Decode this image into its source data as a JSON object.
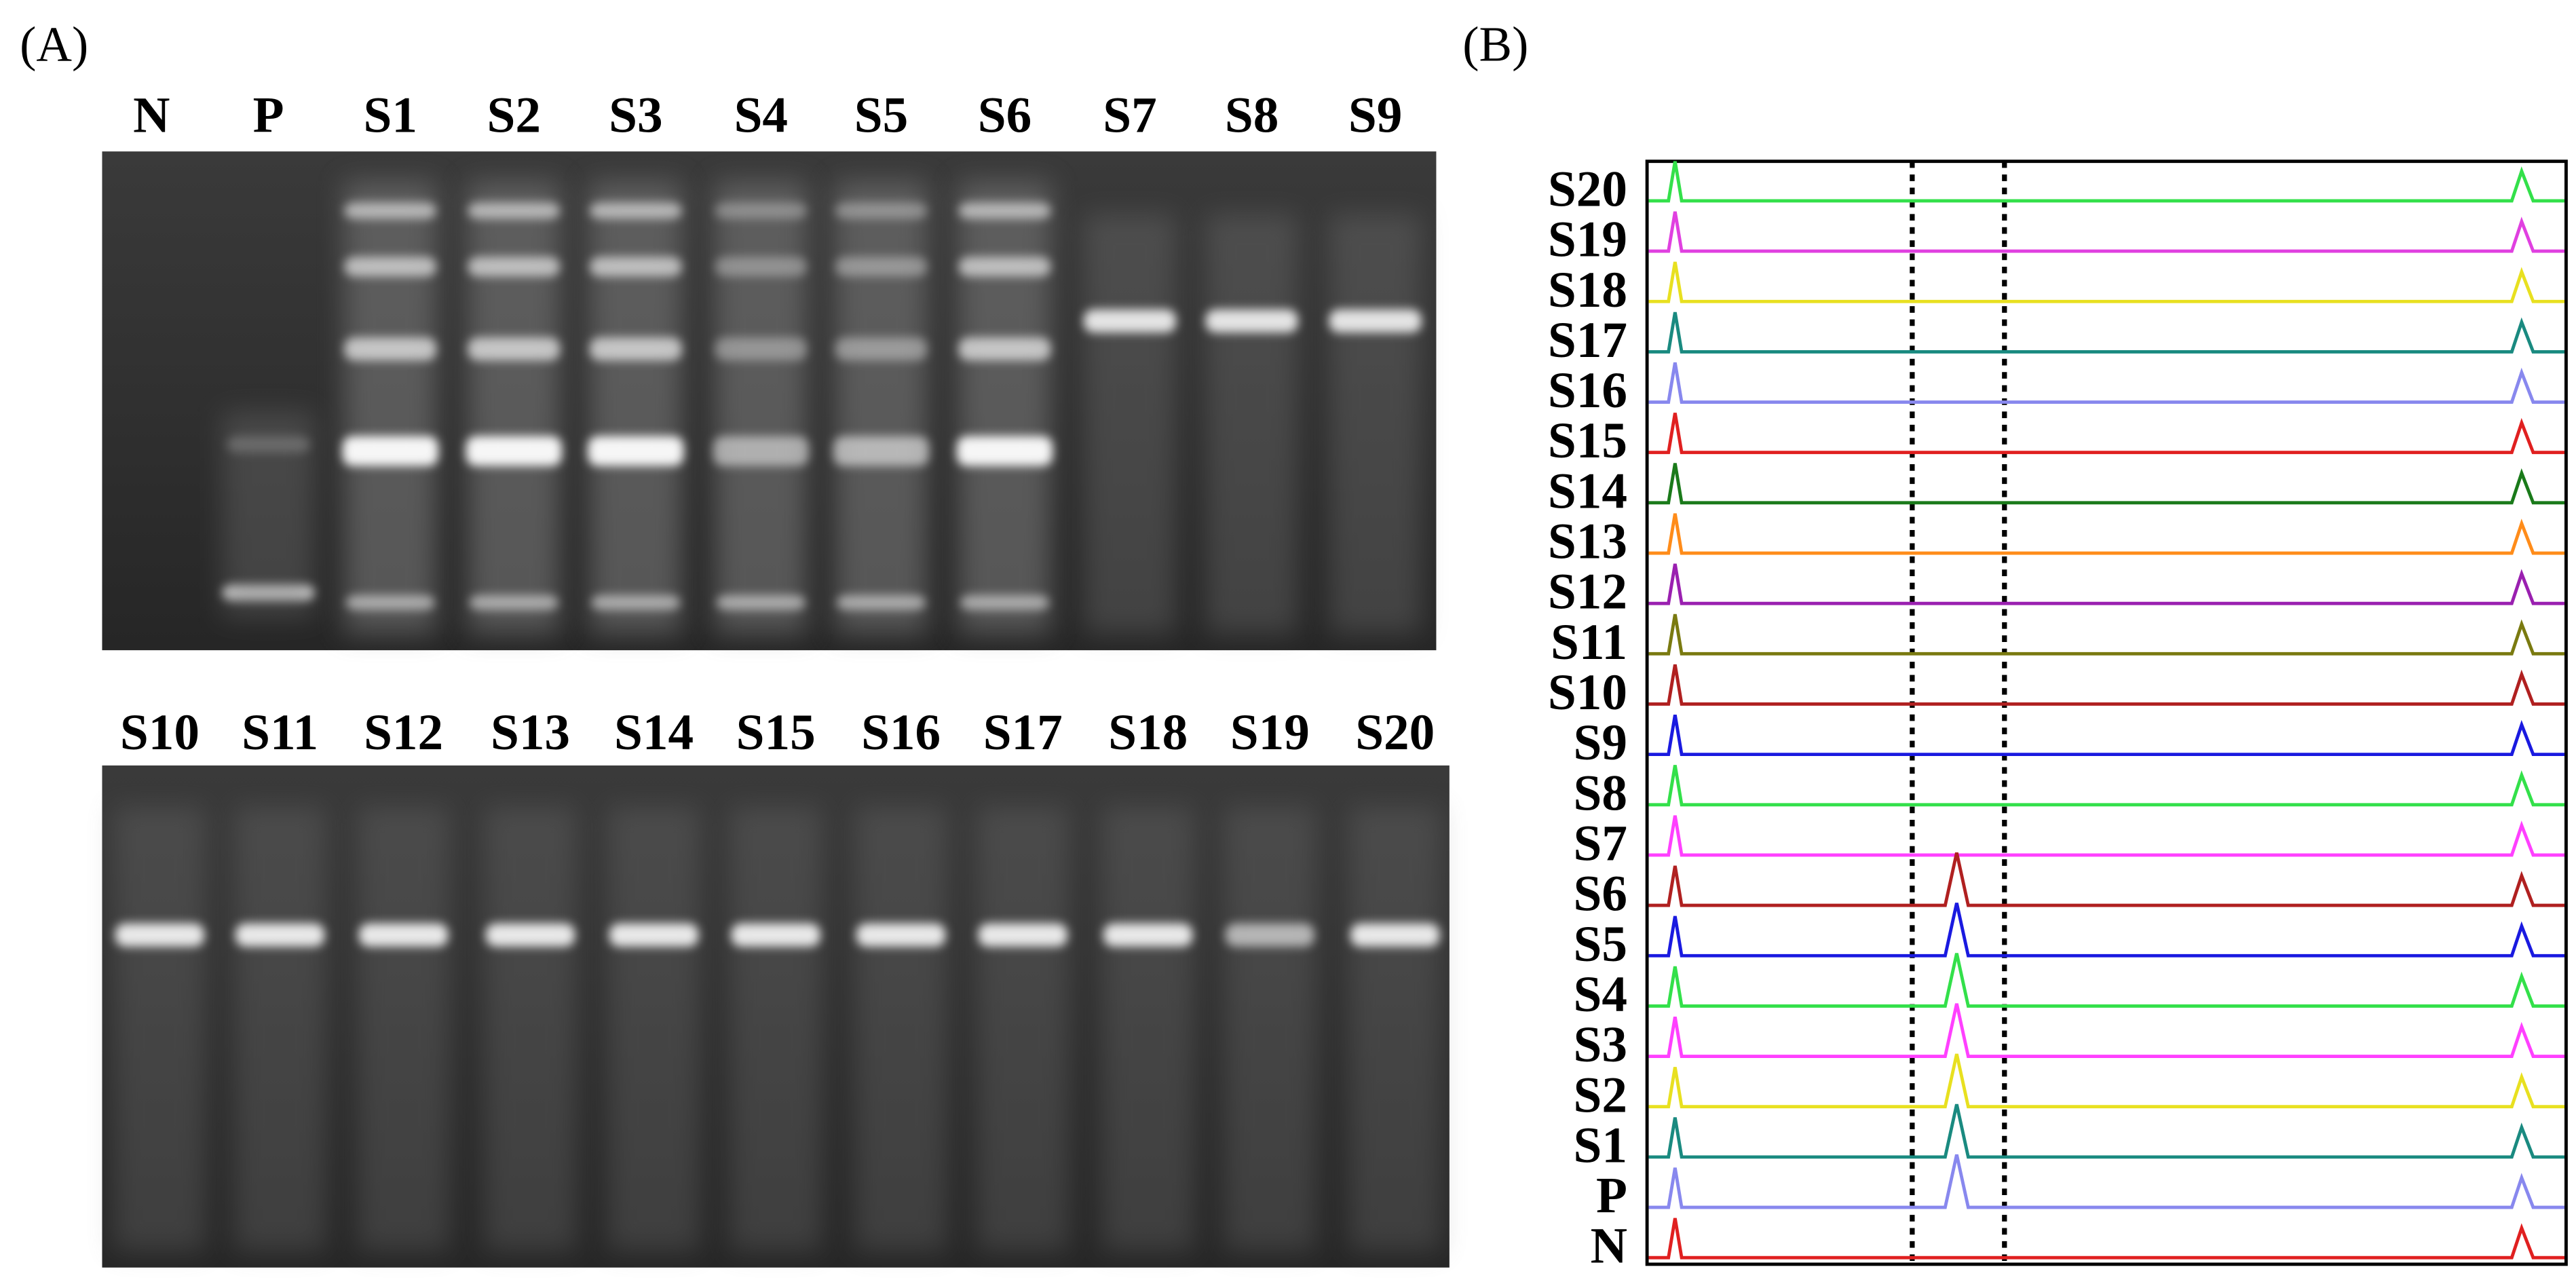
{
  "panel_a": {
    "label": "(A)",
    "top_lanes": [
      "N",
      "P",
      "S1",
      "S2",
      "S3",
      "S4",
      "S5",
      "S6",
      "S7",
      "S8",
      "S9"
    ],
    "bottom_lanes": [
      "S10",
      "S11",
      "S12",
      "S13",
      "S14",
      "S15",
      "S16",
      "S17",
      "S18",
      "S19",
      "S20"
    ]
  },
  "panel_b": {
    "label": "(B)",
    "traces": [
      {
        "label": "S20",
        "color": "#33e04a"
      },
      {
        "label": "S19",
        "color": "#e040e0"
      },
      {
        "label": "S18",
        "color": "#e8e020"
      },
      {
        "label": "S17",
        "color": "#1a8a80"
      },
      {
        "label": "S16",
        "color": "#8888ee"
      },
      {
        "label": "S15",
        "color": "#e02020"
      },
      {
        "label": "S14",
        "color": "#1a7a1a"
      },
      {
        "label": "S13",
        "color": "#ff8c1a"
      },
      {
        "label": "S12",
        "color": "#9a20b0"
      },
      {
        "label": "S11",
        "color": "#7a7a10"
      },
      {
        "label": "S10",
        "color": "#b02020"
      },
      {
        "label": "S9",
        "color": "#1a1ae0"
      },
      {
        "label": "S8",
        "color": "#33e04a"
      },
      {
        "label": "S7",
        "color": "#ff40ff"
      },
      {
        "label": "S6",
        "color": "#b02020"
      },
      {
        "label": "S5",
        "color": "#1a1ae0"
      },
      {
        "label": "S4",
        "color": "#33e04a"
      },
      {
        "label": "S3",
        "color": "#ff40ff"
      },
      {
        "label": "S2",
        "color": "#e8e020"
      },
      {
        "label": "S1",
        "color": "#1a8a80"
      },
      {
        "label": "P",
        "color": "#8888ee"
      },
      {
        "label": "N",
        "color": "#e02020"
      }
    ]
  }
}
